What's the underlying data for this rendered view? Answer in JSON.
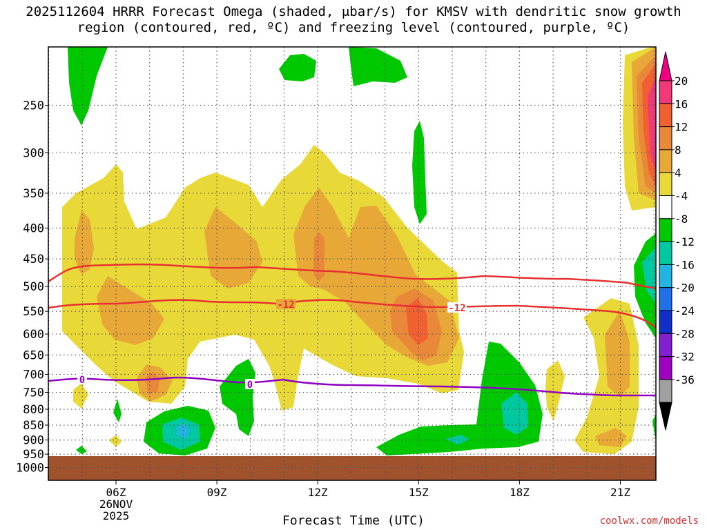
{
  "chart_data": {
    "type": "heatmap",
    "title": "2025112604 HRRR Forecast Omega (shaded, μbar/s) for KMSV with dendritic snow growth region (contoured, red, ºC) and freezing level (contoured, purple, ºC)",
    "xlabel": "Forecast Time (UTC)",
    "ylabel": "",
    "x_ticks": [
      "06Z",
      "09Z",
      "12Z",
      "15Z",
      "18Z",
      "21Z"
    ],
    "x_date_label": [
      "26NOV",
      "2025"
    ],
    "y_ticks": [
      250,
      300,
      350,
      400,
      450,
      500,
      550,
      600,
      650,
      700,
      750,
      800,
      850,
      900,
      950,
      1000
    ],
    "grid": true,
    "surface_color": "#a0522d",
    "colorbar": {
      "labels": [
        "20",
        "16",
        "12",
        "8",
        "4",
        "-4",
        "-8",
        "-12",
        "-16",
        "-20",
        "-24",
        "-28",
        "-32",
        "-36"
      ],
      "colors": [
        "#f0387a",
        "#f06030",
        "#e88838",
        "#e8a838",
        "#e8d838",
        "#ffffff",
        "#00c800",
        "#00c8a0",
        "#20b4e0",
        "#2070e8",
        "#1030c8",
        "#8020d0",
        "#a000c0",
        "#a0a0a0"
      ],
      "top_arrow": "#f00080",
      "bottom_arrow": "#000000"
    },
    "contour_labels": [
      {
        "text": "-12",
        "color": "#e83030"
      },
      {
        "text": "-12",
        "color": "#e83030"
      },
      {
        "text": "0",
        "color": "#9000c0"
      },
      {
        "text": "0",
        "color": "#9000c0"
      }
    ],
    "credit": "coolwx.com/models"
  }
}
